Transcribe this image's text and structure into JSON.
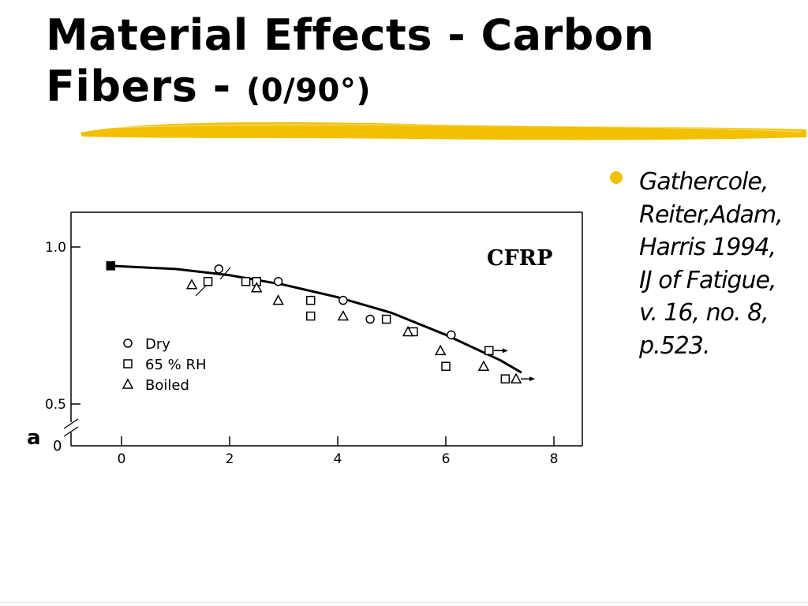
{
  "slide": {
    "title_main": "Material Effects - Carbon Fibers -",
    "title_sub": "(0/90°)",
    "bullet_lines": [
      "Gathercole,",
      "Reiter,Adam,",
      "Harris 1994,",
      "IJ of Fatigue,",
      "v. 16, no. 8,",
      "p.523."
    ],
    "colors": {
      "rule": "#f3c000",
      "bullet": "#f3c000"
    },
    "icons": {
      "bullet": "filled-circle"
    }
  },
  "chart_data": {
    "type": "scatter",
    "title": "CFRP",
    "xlabel": "",
    "ylabel": "a",
    "xlim": [
      -1,
      8
    ],
    "ylim": [
      0,
      1.05
    ],
    "axis_break": true,
    "x_ticks": [
      0,
      2,
      4,
      6,
      8
    ],
    "x_tick_labels": [
      "0",
      "2",
      "4",
      "6",
      "8"
    ],
    "y_ticks": [
      1.0,
      0.5
    ],
    "y_tick_labels": [
      "1.0",
      "0.5"
    ],
    "y_zero_label": "0",
    "grid": false,
    "legend_position": "center-left",
    "fit_curve": {
      "x": [
        -0.2,
        1,
        2,
        3,
        4,
        5,
        6,
        7,
        7.4
      ],
      "y": [
        0.94,
        0.93,
        0.91,
        0.88,
        0.84,
        0.79,
        0.72,
        0.64,
        0.6
      ]
    },
    "series": [
      {
        "name": "Dry",
        "marker": "circle",
        "x": [
          1.8,
          2.9,
          4.1,
          4.6,
          6.1
        ],
        "y": [
          0.93,
          0.89,
          0.83,
          0.77,
          0.72
        ]
      },
      {
        "name": "65 % RH",
        "marker": "square",
        "x": [
          1.6,
          2.3,
          2.5,
          3.5,
          3.5,
          4.9,
          5.4,
          6.0,
          6.8,
          7.1
        ],
        "y": [
          0.89,
          0.89,
          0.89,
          0.83,
          0.78,
          0.77,
          0.73,
          0.62,
          0.67,
          0.58
        ]
      },
      {
        "name": "Boiled",
        "marker": "triangle",
        "x": [
          1.3,
          2.5,
          2.9,
          4.1,
          5.3,
          5.9,
          6.7,
          7.3
        ],
        "y": [
          0.88,
          0.87,
          0.83,
          0.78,
          0.73,
          0.67,
          0.62,
          0.58
        ]
      },
      {
        "name": "",
        "marker": "filled-square",
        "x": [
          -0.2
        ],
        "y": [
          0.94
        ]
      }
    ]
  }
}
